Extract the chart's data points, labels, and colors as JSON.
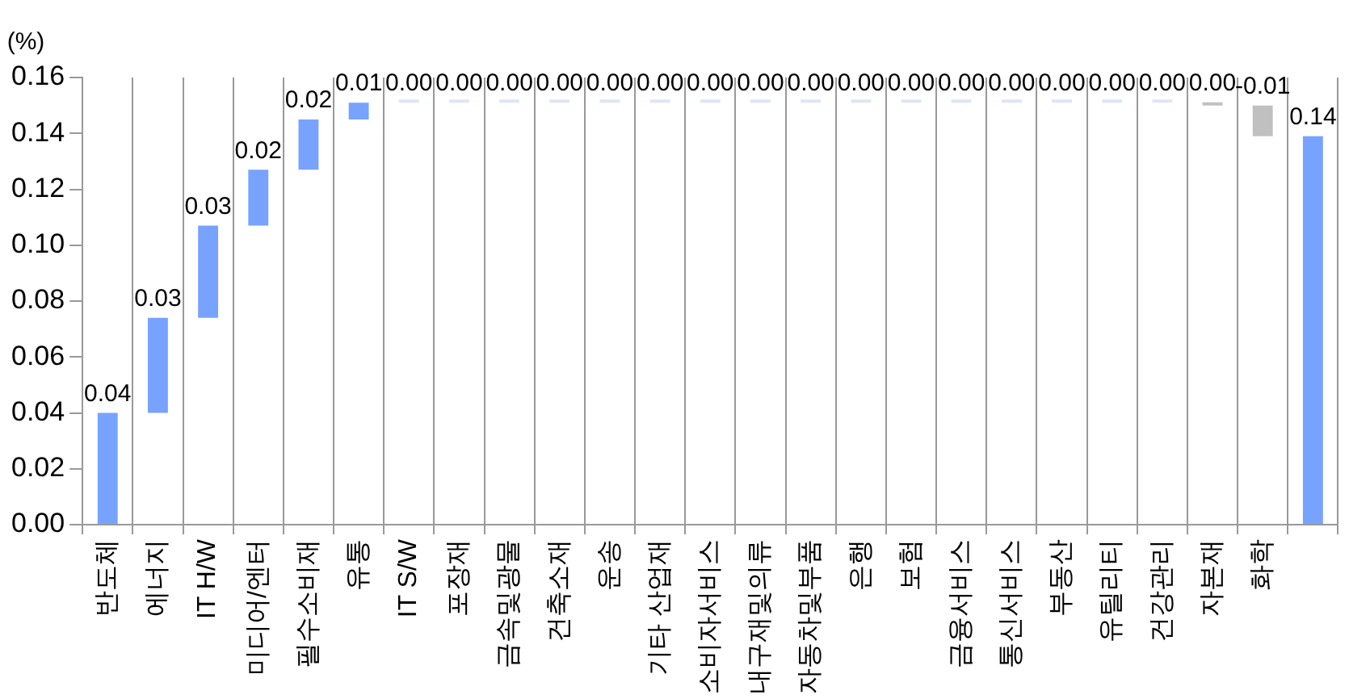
{
  "chart_data": {
    "type": "bar",
    "ylabel": "(%)",
    "categories": [
      "반도체",
      "에너지",
      "IT H/W",
      "미디어/엔터",
      "필수소비재",
      "유통",
      "IT S/W",
      "포장재",
      "금속및광물",
      "건축소재",
      "운송",
      "기타 산업재",
      "소비자서비스",
      "내구재및의류",
      "자동차및부품",
      "은행",
      "보험",
      "금융서비스",
      "통신서비스",
      "부동산",
      "유틸리티",
      "건강관리",
      "자본재",
      "화학",
      null
    ],
    "values": [
      0.04,
      0.034,
      0.033,
      0.02,
      0.018,
      0.006,
      0,
      0,
      0,
      0,
      0,
      0,
      0,
      0,
      0,
      0,
      0,
      0,
      0,
      0,
      0,
      0,
      -0.001,
      -0.011,
      0.139
    ],
    "base": [
      0,
      0.04,
      0.074,
      0.107,
      0.127,
      0.145,
      0.151,
      0.151,
      0.151,
      0.151,
      0.151,
      0.151,
      0.151,
      0.151,
      0.151,
      0.151,
      0.151,
      0.151,
      0.151,
      0.151,
      0.151,
      0.151,
      0.151,
      0.15,
      0
    ],
    "colors": [
      "#77a3ff",
      "#77a3ff",
      "#77a3ff",
      "#77a3ff",
      "#77a3ff",
      "#77a3ff",
      "#dde6f5",
      "#dde6f5",
      "#dde6f5",
      "#dde6f5",
      "#dde6f5",
      "#dde6f5",
      "#dde6f5",
      "#dde6f5",
      "#dde6f5",
      "#dde6f5",
      "#dde6f5",
      "#dde6f5",
      "#dde6f5",
      "#dde6f5",
      "#dde6f5",
      "#dde6f5",
      "#c0c0c0",
      "#c0c0c0",
      "#77a3ff"
    ],
    "value_labels": [
      "0.04",
      "0.03",
      "0.03",
      "0.02",
      "0.02",
      "0.01",
      "0.00",
      "0.00",
      "0.00",
      "0.00",
      "0.00",
      "0.00",
      "0.00",
      "0.00",
      "0.00",
      "0.00",
      "0.00",
      "0.00",
      "0.00",
      "0.00",
      "0.00",
      "0.00",
      "0.00",
      "-0.01",
      "0.14"
    ],
    "ylim": [
      0,
      0.16
    ],
    "yticks": [
      {
        "value": 0,
        "label": "0.00"
      },
      0.02,
      0.04,
      0.06,
      0.08,
      {
        "value": 0.1,
        "label": "0.10"
      },
      0.12,
      0.14,
      0.16
    ],
    "grid": "x",
    "legend": false
  }
}
